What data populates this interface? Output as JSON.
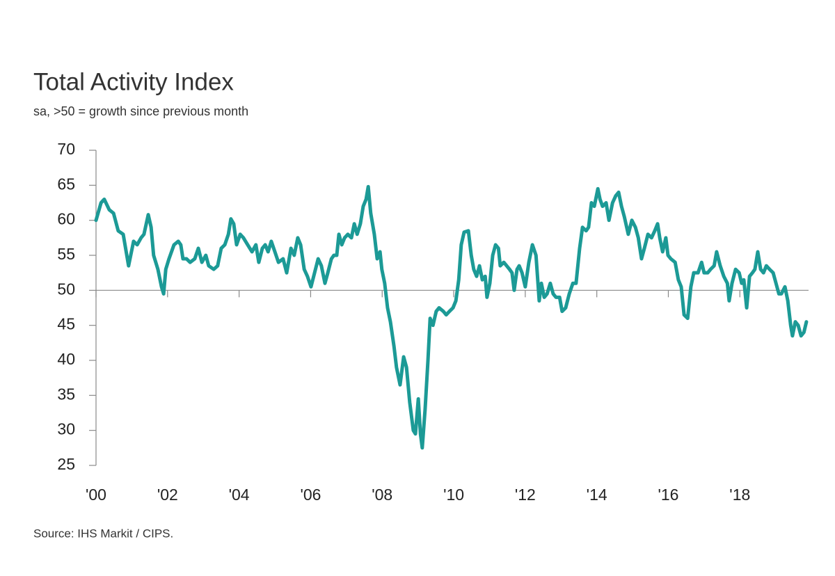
{
  "chart_data": {
    "type": "line",
    "title": "Total Activity Index",
    "subtitle": "sa, >50 = growth since previous month",
    "source": "Source: IHS Markit / CIPS.",
    "xlim": [
      2000,
      2019.92
    ],
    "ylim": [
      25,
      70
    ],
    "yticks": [
      25,
      30,
      35,
      40,
      45,
      50,
      55,
      60,
      65,
      70
    ],
    "xticks": [
      {
        "value": 2000,
        "label": "'00"
      },
      {
        "value": 2002,
        "label": "'02"
      },
      {
        "value": 2004,
        "label": "'04"
      },
      {
        "value": 2006,
        "label": "'06"
      },
      {
        "value": 2008,
        "label": "'08"
      },
      {
        "value": 2010,
        "label": "'10"
      },
      {
        "value": 2012,
        "label": "'12"
      },
      {
        "value": 2014,
        "label": "'14"
      },
      {
        "value": 2016,
        "label": "'16"
      },
      {
        "value": 2018,
        "label": "'18"
      }
    ],
    "reference_line": 50,
    "x": [
      2000.0,
      2000.14,
      2000.23,
      2000.37,
      2000.49,
      2000.62,
      2000.76,
      2000.86,
      2000.91,
      2001.05,
      2001.15,
      2001.26,
      2001.34,
      2001.46,
      2001.54,
      2001.61,
      2001.73,
      2001.83,
      2001.89,
      2001.95,
      2002.04,
      2002.18,
      2002.3,
      2002.37,
      2002.43,
      2002.53,
      2002.63,
      2002.76,
      2002.86,
      2002.96,
      2003.07,
      2003.15,
      2003.29,
      2003.4,
      2003.5,
      2003.6,
      2003.7,
      2003.77,
      2003.85,
      2003.93,
      2004.03,
      2004.12,
      2004.24,
      2004.36,
      2004.47,
      2004.55,
      2004.65,
      2004.73,
      2004.81,
      2004.9,
      2005.0,
      2005.1,
      2005.23,
      2005.33,
      2005.45,
      2005.54,
      2005.64,
      2005.72,
      2005.82,
      2005.91,
      2006.01,
      2006.11,
      2006.21,
      2006.3,
      2006.4,
      2006.48,
      2006.58,
      2006.65,
      2006.73,
      2006.79,
      2006.87,
      2006.95,
      2007.04,
      2007.14,
      2007.22,
      2007.3,
      2007.39,
      2007.47,
      2007.55,
      2007.61,
      2007.68,
      2007.78,
      2007.86,
      2007.94,
      2007.99,
      2008.07,
      2008.15,
      2008.23,
      2008.33,
      2008.4,
      2008.5,
      2008.6,
      2008.68,
      2008.77,
      2008.87,
      2008.93,
      2009.01,
      2009.07,
      2009.12,
      2009.2,
      2009.28,
      2009.34,
      2009.42,
      2009.51,
      2009.59,
      2009.71,
      2009.79,
      2009.88,
      2009.98,
      2010.06,
      2010.14,
      2010.21,
      2010.29,
      2010.41,
      2010.49,
      2010.56,
      2010.64,
      2010.72,
      2010.8,
      2010.88,
      2010.93,
      2011.01,
      2011.09,
      2011.17,
      2011.25,
      2011.3,
      2011.4,
      2011.48,
      2011.56,
      2011.63,
      2011.69,
      2011.77,
      2011.83,
      2011.91,
      2012.0,
      2012.1,
      2012.2,
      2012.3,
      2012.39,
      2012.45,
      2012.53,
      2012.61,
      2012.7,
      2012.78,
      2012.86,
      2012.96,
      2013.03,
      2013.13,
      2013.23,
      2013.33,
      2013.42,
      2013.52,
      2013.6,
      2013.7,
      2013.77,
      2013.85,
      2013.93,
      2014.03,
      2014.09,
      2014.16,
      2014.26,
      2014.34,
      2014.44,
      2014.53,
      2014.61,
      2014.69,
      2014.77,
      2014.88,
      2014.98,
      2015.08,
      2015.16,
      2015.25,
      2015.33,
      2015.43,
      2015.53,
      2015.62,
      2015.7,
      2015.76,
      2015.84,
      2015.93,
      2015.99,
      2016.07,
      2016.19,
      2016.28,
      2016.36,
      2016.44,
      2016.54,
      2016.63,
      2016.71,
      2016.83,
      2016.93,
      2017.0,
      2017.1,
      2017.18,
      2017.28,
      2017.35,
      2017.45,
      2017.55,
      2017.65,
      2017.7,
      2017.78,
      2017.88,
      2017.98,
      2018.05,
      2018.11,
      2018.19,
      2018.27,
      2018.35,
      2018.42,
      2018.5,
      2018.58,
      2018.66,
      2018.74,
      2018.83,
      2018.93,
      2019.01,
      2019.09,
      2019.16,
      2019.26,
      2019.34,
      2019.42,
      2019.47,
      2019.55,
      2019.63,
      2019.71,
      2019.79,
      2019.86
    ],
    "series": [
      {
        "name": "Total Activity Index",
        "color": "#1c9a96",
        "values": [
          60,
          62.5,
          63,
          61.5,
          61,
          58.5,
          58,
          55,
          53.5,
          57,
          56.5,
          57.5,
          58,
          60.8,
          59,
          55,
          53,
          50.5,
          49.5,
          53,
          54.5,
          56.5,
          57,
          56.5,
          54.5,
          54.5,
          54,
          54.5,
          56,
          54,
          55,
          53.5,
          53,
          53.5,
          56,
          56.5,
          58,
          60.2,
          59.5,
          56.5,
          58,
          57.5,
          56.5,
          55.5,
          56.5,
          54,
          56,
          56.5,
          55.5,
          57,
          55.5,
          54,
          54.5,
          52.5,
          56,
          55,
          57.5,
          56.5,
          53,
          52,
          50.5,
          52.5,
          54.5,
          53.5,
          51,
          52.5,
          54.5,
          55,
          55,
          58,
          56.5,
          57.5,
          58,
          57.5,
          59.5,
          58,
          59.5,
          62,
          63,
          64.8,
          61,
          58,
          54.5,
          55.5,
          53,
          51,
          47.5,
          45.5,
          42,
          39,
          36.5,
          40.5,
          39,
          34,
          30,
          29.5,
          34.5,
          29.5,
          27.5,
          33,
          40,
          46,
          45,
          47,
          47.5,
          47,
          46.5,
          47,
          47.5,
          48.5,
          51.5,
          56.5,
          58.3,
          58.5,
          55,
          53,
          52,
          53.5,
          51.5,
          52,
          49,
          51,
          55,
          56.5,
          56,
          53.5,
          54,
          53.5,
          53,
          52.5,
          50,
          53,
          53.5,
          52.5,
          50.5,
          54,
          56.5,
          55,
          48.5,
          51,
          49,
          49.5,
          51,
          49.5,
          49,
          49,
          47,
          47.5,
          49.5,
          51,
          51,
          56,
          59,
          58.5,
          59,
          62.5,
          62,
          64.5,
          63,
          62,
          62.5,
          60,
          62.5,
          63.5,
          64,
          62,
          60.5,
          58,
          60,
          59,
          57.5,
          54.5,
          56,
          58,
          57.5,
          58.5,
          59.5,
          57.5,
          55.5,
          57.5,
          55,
          54.5,
          54,
          51.5,
          50.5,
          46.5,
          46,
          50.5,
          52.5,
          52.5,
          54,
          52.5,
          52.5,
          53,
          53.5,
          55.5,
          53.5,
          52,
          51,
          48.5,
          51,
          53,
          52.5,
          51,
          51.5,
          47.5,
          52,
          52.5,
          53,
          55.5,
          53,
          52.5,
          53.5,
          53,
          52.5,
          51,
          49.5,
          49.5,
          50.5,
          48.5,
          45,
          43.5,
          45.5,
          45,
          43.5,
          44,
          45.5
        ]
      }
    ]
  }
}
